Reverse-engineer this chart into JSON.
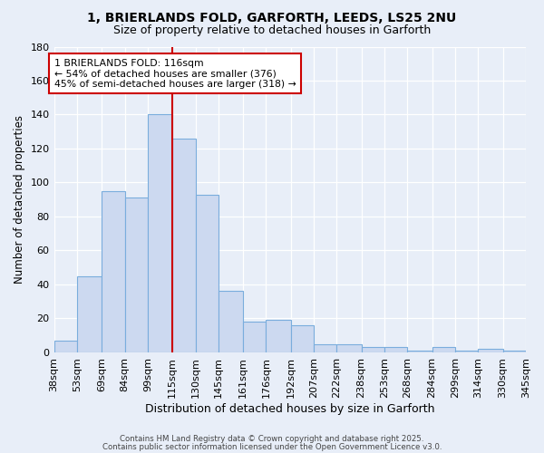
{
  "title": "1, BRIERLANDS FOLD, GARFORTH, LEEDS, LS25 2NU",
  "subtitle": "Size of property relative to detached houses in Garforth",
  "xlabel": "Distribution of detached houses by size in Garforth",
  "ylabel": "Number of detached properties",
  "bar_values": [
    7,
    45,
    95,
    91,
    140,
    126,
    93,
    36,
    18,
    19,
    16,
    5,
    5,
    3,
    3,
    1,
    3,
    1,
    2,
    1
  ],
  "bin_labels": [
    "38sqm",
    "53sqm",
    "69sqm",
    "84sqm",
    "99sqm",
    "115sqm",
    "130sqm",
    "145sqm",
    "161sqm",
    "176sqm",
    "192sqm",
    "207sqm",
    "222sqm",
    "238sqm",
    "253sqm",
    "268sqm",
    "284sqm",
    "299sqm",
    "314sqm",
    "330sqm",
    "345sqm"
  ],
  "bin_edges": [
    38,
    53,
    69,
    84,
    99,
    115,
    130,
    145,
    161,
    176,
    192,
    207,
    222,
    238,
    253,
    268,
    284,
    299,
    314,
    330,
    345
  ],
  "vline_x": 115,
  "bar_color": "#ccd9f0",
  "bar_edge_color": "#7aaddd",
  "vline_color": "#cc0000",
  "annotation_text": "1 BRIERLANDS FOLD: 116sqm\n← 54% of detached houses are smaller (376)\n45% of semi-detached houses are larger (318) →",
  "annotation_box_color": "#ffffff",
  "annotation_box_edge": "#cc0000",
  "ylim": [
    0,
    180
  ],
  "yticks": [
    0,
    20,
    40,
    60,
    80,
    100,
    120,
    140,
    160,
    180
  ],
  "background_color": "#e8eef8",
  "footer_line1": "Contains HM Land Registry data © Crown copyright and database right 2025.",
  "footer_line2": "Contains public sector information licensed under the Open Government Licence v3.0."
}
